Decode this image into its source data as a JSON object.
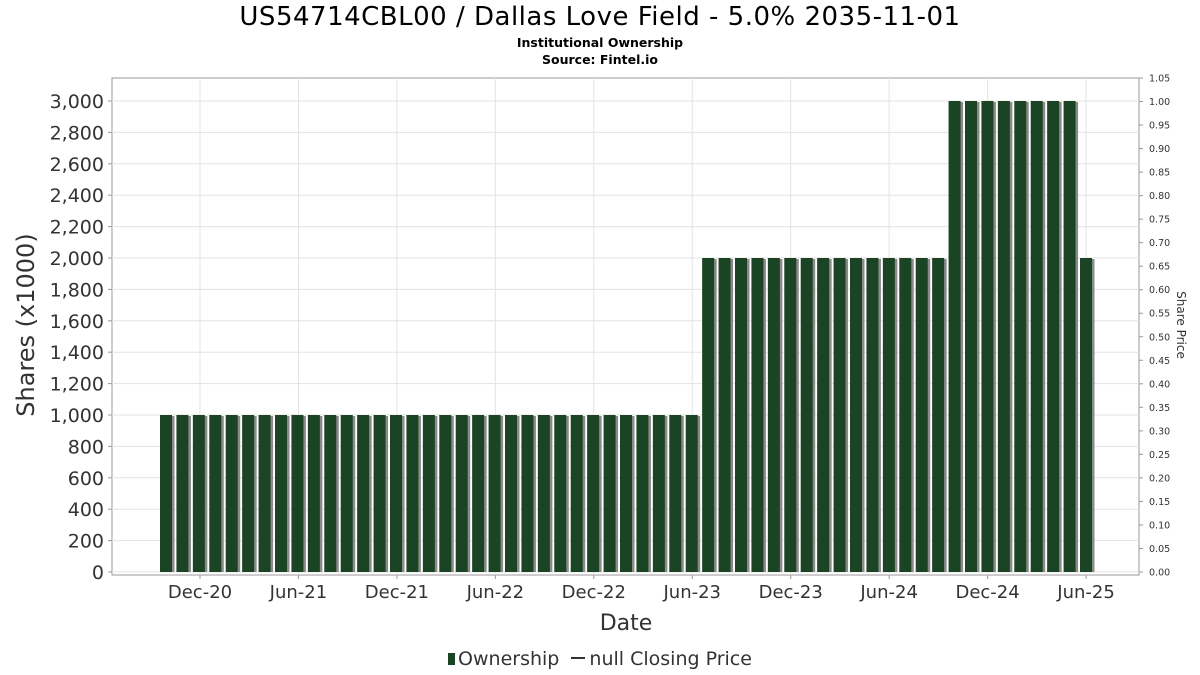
{
  "title": "US54714CBL00 / Dallas Love Field - 5.0% 2035-11-01",
  "subtitle": "Institutional Ownership",
  "source": "Source: Fintel.io",
  "legend": {
    "ownership": "Ownership",
    "price": "null Closing Price"
  },
  "chart_data": {
    "type": "bar",
    "xlabel": "Date",
    "ylabel": "Shares (x1000)",
    "y2label": "Share Price",
    "ylim": [
      0,
      3100
    ],
    "y2lim": [
      0,
      1.05
    ],
    "yticks": [
      "0",
      "200",
      "400",
      "600",
      "800",
      "1,000",
      "1,200",
      "1,400",
      "1,600",
      "1,800",
      "2,000",
      "2,200",
      "2,400",
      "2,600",
      "2,800",
      "3,000"
    ],
    "y2ticks": [
      "0.00",
      "0.05",
      "0.10",
      "0.15",
      "0.20",
      "0.25",
      "0.30",
      "0.35",
      "0.40",
      "0.45",
      "0.50",
      "0.55",
      "0.60",
      "0.65",
      "0.70",
      "0.75",
      "0.80",
      "0.85",
      "0.90",
      "0.95",
      "1.00",
      "1.05"
    ],
    "xticks": [
      "Dec-20",
      "Jun-21",
      "Dec-21",
      "Jun-22",
      "Dec-22",
      "Jun-23",
      "Dec-23",
      "Jun-24",
      "Dec-24",
      "Jun-25"
    ],
    "grid": true,
    "legend_position": "bottom",
    "colors": {
      "bar": "#1a4423",
      "shadow": "#8a8a8a"
    },
    "series": [
      {
        "name": "Ownership",
        "values": [
          1000,
          1000,
          1000,
          1000,
          1000,
          1000,
          1000,
          1000,
          1000,
          1000,
          1000,
          1000,
          1000,
          1000,
          1000,
          1000,
          1000,
          1000,
          1000,
          1000,
          1000,
          1000,
          1000,
          1000,
          1000,
          1000,
          1000,
          1000,
          1000,
          1000,
          1000,
          1000,
          1000,
          2000,
          2000,
          2000,
          2000,
          2000,
          2000,
          2000,
          2000,
          2000,
          2000,
          2000,
          2000,
          2000,
          2000,
          2000,
          3000,
          3000,
          3000,
          3000,
          3000,
          3000,
          3000,
          3000,
          2000
        ]
      }
    ]
  }
}
